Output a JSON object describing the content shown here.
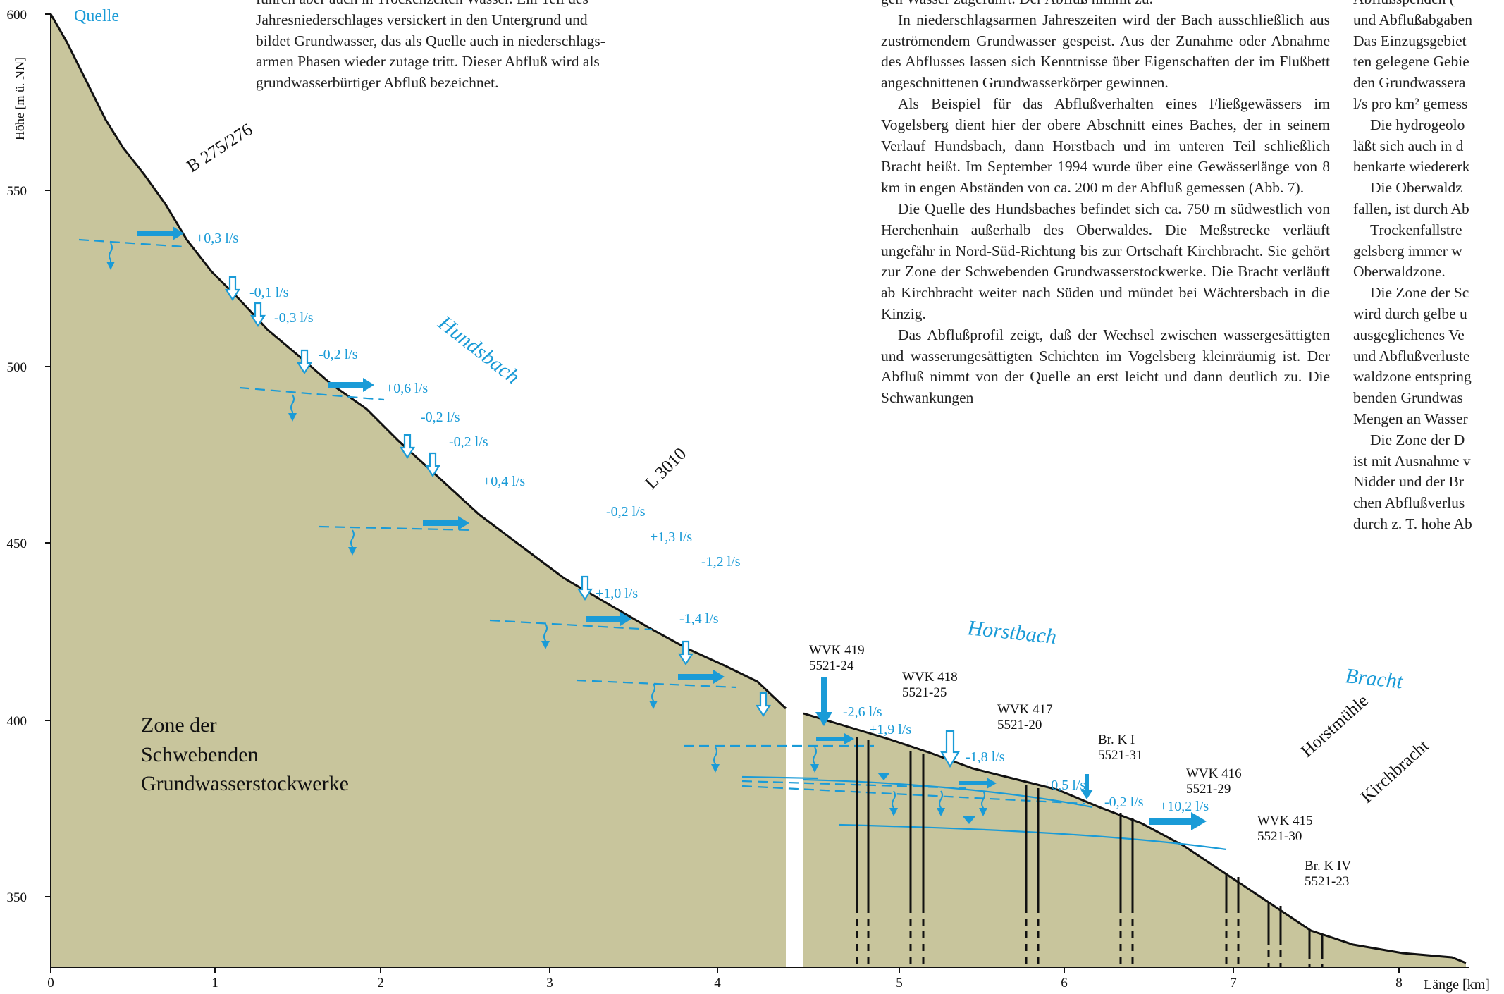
{
  "axis": {
    "ylabel": "Höhe [m ü. NN]",
    "xlabel": "Länge [km]",
    "yticks": [
      "600",
      "550",
      "500",
      "450",
      "400",
      "350"
    ],
    "xticks": [
      "0",
      "1",
      "2",
      "3",
      "4",
      "5",
      "6",
      "7",
      "8"
    ]
  },
  "labels": {
    "quelle": "Quelle",
    "zone": [
      "Zone der",
      "Schwebenden",
      "Grundwasserstockwerke"
    ],
    "streams": [
      "Hundsbach",
      "Horstbach",
      "Bracht"
    ],
    "roads": [
      "B 275/276",
      "L 3010"
    ],
    "places": [
      "Horstmühle",
      "Kirchbracht"
    ]
  },
  "measurements": [
    "+0,3 l/s",
    "-0,1 l/s",
    "-0,3 l/s",
    "-0,2 l/s",
    "+0,6 l/s",
    "-0,2 l/s",
    "-0,2 l/s",
    "+0,4 l/s",
    "-0,2 l/s",
    "+1,3 l/s",
    "-1,2 l/s",
    "+1,0 l/s",
    "-1,4 l/s",
    "-2,6 l/s",
    "+1,9 l/s",
    "-1,8 l/s",
    "+0,5 l/s",
    "-0,2 l/s",
    "+10,2 l/s"
  ],
  "wells": [
    {
      "name": "WVK 419",
      "id": "5521-24"
    },
    {
      "name": "WVK 418",
      "id": "5521-25"
    },
    {
      "name": "WVK 417",
      "id": "5521-20"
    },
    {
      "name": "Br. K I",
      "id": "5521-31"
    },
    {
      "name": "WVK 416",
      "id": "5521-29"
    },
    {
      "name": "WVK 415",
      "id": "5521-30"
    },
    {
      "name": "Br. K IV",
      "id": "5521-23"
    }
  ],
  "text_col1": [
    "führen aber auch in Trockenzeiten Wasser. Ein Teil des",
    "Jahresniederschlages versickert in den Untergrund und",
    "bildet Grundwasser, das als Quelle auch in niederschlags-",
    "armen Phasen wieder zutage tritt. Dieser Abfluß wird als",
    "grundwasserbürtiger Abfluß bezeichnet."
  ],
  "text_col2": [
    "gen Wasser zugeführt. Der Abfluß nimmt zu.",
    "In niederschlagsarmen Jahreszeiten wird der Bach ausschließlich aus zuströmendem Grundwasser gespeist. Aus der Zunahme oder Abnahme des Abflusses lassen sich Kenntnisse über Eigenschaften der im Flußbett angeschnittenen Grundwasserkörper gewinnen.",
    "Als Beispiel für das Abflußverhalten eines Fließgewässers im Vogelsberg dient hier der obere Abschnitt eines Baches, der in seinem Verlauf Hundsbach, dann Horstbach und im unteren Teil schließlich Bracht heißt. Im September 1994 wurde über eine Gewässerlänge von 8 km in engen Abständen von ca. 200 m der Abfluß gemessen (Abb. 7).",
    "Die Quelle des Hundsbaches befindet sich ca. 750 m südwestlich von Herchenhain außerhalb des Oberwaldes. Die Meßstrecke verläuft ungefähr in Nord-Süd-Richtung bis zur Ortschaft Kirchbracht. Sie gehört zur Zone der Schwebenden Grundwasserstockwerke. Die Bracht verläuft ab Kirchbracht weiter nach Süden und mündet bei Wächtersbach in die Kinzig.",
    "Das Abflußprofil zeigt, daß der Wechsel zwischen wassergesättigten und wasserungesättigten Schichten im Vogelsberg kleinräumig ist. Der Abfluß nimmt von der Quelle an erst leicht und dann deutlich zu. Die Schwankungen"
  ],
  "text_col3": [
    "Abflußspenden (",
    "und Abflußabgaben",
    "Das Einzugsgebiet",
    "ten gelegene Gebie",
    "den Grundwassera",
    "l/s pro km² gemess",
    "Die hydrogeolo",
    "läßt sich auch in d",
    "benkarte wiedererk",
    "Die Oberwaldz",
    "fallen, ist durch Ab",
    "Trockenfallstre",
    "gelsberg immer w",
    "Oberwaldzone.",
    "Die Zone der Sc",
    "wird durch gelbe u",
    "ausgeglichenes Ve",
    "und Abflußverluste",
    "waldzone entspring",
    "benden Grundwas",
    "Mengen an Wasser",
    "Die Zone der D",
    "ist mit Ausnahme v",
    "Nidder und der Br",
    "chen Abflußverlus",
    "durch z. T. hohe Ab"
  ]
}
